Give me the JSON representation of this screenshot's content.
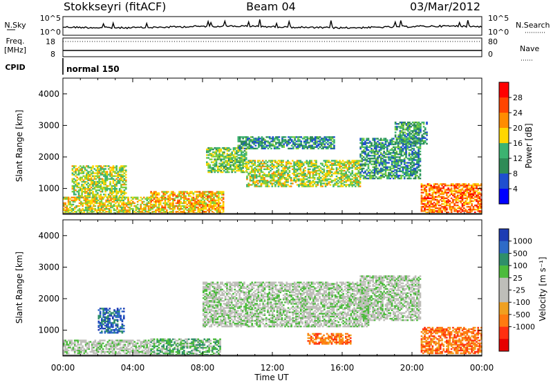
{
  "header": {
    "station": "Stokkseyri (fitACF)",
    "beam": "Beam 04",
    "date": "03/Mar/2012"
  },
  "noise_panel": {
    "left_label": "N.Sky",
    "left_ticks": [
      "10^5",
      "10^0"
    ],
    "right_label": "N.Search",
    "right_ticks": [
      "10^5",
      "10^0"
    ]
  },
  "freq_panel": {
    "left_label_1": "Freq.",
    "left_label_2": "[MHz]",
    "left_ticks": [
      "18",
      "8"
    ],
    "right_label": "Nave",
    "right_ticks": [
      "80",
      "0"
    ]
  },
  "cpid_panel": {
    "label": "CPID",
    "mode": "normal 150"
  },
  "chart_data": [
    {
      "type": "heatmap",
      "name": "power",
      "ylabel": "Slant Range [km]",
      "xlabel": "",
      "xlim": [
        0,
        24
      ],
      "ylim": [
        180,
        4500
      ],
      "yticks": [
        1000,
        2000,
        3000,
        4000
      ],
      "colorbar_label": "Power [dB]",
      "colorbar_ticks": [
        "4",
        "8",
        "12",
        "16",
        "20",
        "24",
        "28"
      ],
      "colorbar_range": [
        0,
        30
      ],
      "colors": [
        "#0000ff",
        "#1f4fd0",
        "#2e8b57",
        "#3cb371",
        "#7fce3c",
        "#ffd700",
        "#ff8c00",
        "#ff4500",
        "#ff0000"
      ],
      "regions": [
        {
          "t0": 0.0,
          "t1": 5.0,
          "r0": 200,
          "r1": 700,
          "value": 18
        },
        {
          "t0": 5.0,
          "t1": 9.2,
          "r0": 200,
          "r1": 900,
          "value": 20
        },
        {
          "t0": 0.5,
          "t1": 3.6,
          "r0": 700,
          "r1": 1700,
          "value": 16
        },
        {
          "t0": 8.2,
          "t1": 10.5,
          "r0": 1500,
          "r1": 2300,
          "value": 14
        },
        {
          "t0": 10.5,
          "t1": 17.0,
          "r0": 1050,
          "r1": 1900,
          "value": 16
        },
        {
          "t0": 10.0,
          "t1": 15.5,
          "r0": 2250,
          "r1": 2650,
          "value": 8
        },
        {
          "t0": 17.0,
          "t1": 20.5,
          "r0": 1300,
          "r1": 2600,
          "value": 9
        },
        {
          "t0": 19.0,
          "t1": 20.8,
          "r0": 2400,
          "r1": 3100,
          "value": 10
        },
        {
          "t0": 20.5,
          "t1": 24.0,
          "r0": 220,
          "r1": 1150,
          "value": 24
        }
      ]
    },
    {
      "type": "heatmap",
      "name": "velocity",
      "ylabel": "Slant Range [km]",
      "xlabel": "Time UT",
      "xlim": [
        0,
        24
      ],
      "ylim": [
        180,
        4500
      ],
      "yticks": [
        1000,
        2000,
        3000,
        4000
      ],
      "xticks": [
        "00:00",
        "04:00",
        "08:00",
        "12:00",
        "16:00",
        "20:00",
        "00:00"
      ],
      "colorbar_label": "Velocity [m s⁻¹]",
      "colorbar_ticks": [
        "1000",
        "500",
        "100",
        "25",
        "-25",
        "-100",
        "-500",
        "-1000"
      ],
      "colors": [
        "#1e3cb4",
        "#2e6bc8",
        "#2f8f6a",
        "#4cbb3c",
        "#bebeb9",
        "#bebeb9",
        "#f0a020",
        "#ff7a10",
        "#ff3010",
        "#e60000"
      ],
      "regions": [
        {
          "t0": 0.0,
          "t1": 5.0,
          "r0": 250,
          "r1": 700,
          "value": 4
        },
        {
          "t0": 5.0,
          "t1": 9.0,
          "r0": 200,
          "r1": 700,
          "value": 3
        },
        {
          "t0": 2.0,
          "t1": 3.5,
          "r0": 900,
          "r1": 1700,
          "value": 1
        },
        {
          "t0": 8.0,
          "t1": 17.5,
          "r0": 1100,
          "r1": 2500,
          "value": 4
        },
        {
          "t0": 14.0,
          "t1": 16.5,
          "r0": 550,
          "r1": 900,
          "value": 7
        },
        {
          "t0": 17.0,
          "t1": 20.5,
          "r0": 1300,
          "r1": 2700,
          "value": 4
        },
        {
          "t0": 20.5,
          "t1": 24.0,
          "r0": 250,
          "r1": 1100,
          "value": 7
        }
      ]
    }
  ]
}
